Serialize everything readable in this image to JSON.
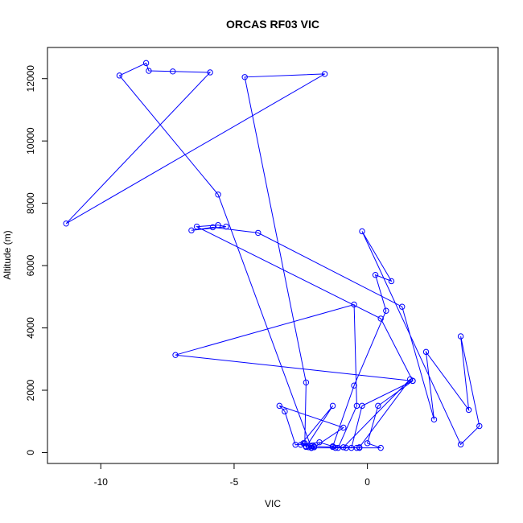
{
  "chart_data": {
    "type": "line",
    "title": "ORCAS RF03 VIC",
    "xlabel": "VIC",
    "ylabel": "Altitude (m)",
    "xlim": [
      -12,
      4.9
    ],
    "ylim": [
      -350,
      13000
    ],
    "x_ticks": [
      -10,
      -5,
      0
    ],
    "y_ticks": [
      0,
      2000,
      4000,
      6000,
      8000,
      10000,
      12000
    ],
    "line_color": "#0000ff",
    "marker": "open-circle",
    "series": [
      {
        "x": [
          -2.3,
          -2.4,
          -2.5,
          -1.3,
          -2.3,
          -2.0,
          -0.3,
          0.5,
          0.0,
          0.4,
          1.7,
          -0.2,
          -0.6,
          -1.3,
          -1.1,
          -0.4,
          -0.5,
          -7.2,
          1.7,
          0.5,
          -6.4,
          -5.6,
          -5.3,
          -6.6,
          -5.8,
          -4.1,
          1.3,
          2.5,
          2.2,
          3.8,
          3.5,
          4.2,
          3.5,
          -0.2,
          0.9,
          0.3,
          0.7,
          -0.5,
          -1.3,
          -1.8,
          -2.7,
          -3.1,
          -3.3,
          -0.9,
          -2.0,
          -2.1,
          -2.2,
          -2.1,
          -5.6,
          -9.3,
          -8.3,
          -8.2,
          -7.3,
          -5.9,
          -11.3,
          -1.6,
          -4.6,
          -2.3,
          -2.35,
          -2.1,
          -1.2,
          -0.8,
          -0.4,
          -0.9,
          1.6,
          -0.3
        ],
        "y": [
          200,
          300,
          250,
          1500,
          180,
          200,
          150,
          150,
          300,
          1500,
          2300,
          1500,
          150,
          180,
          150,
          1500,
          4750,
          3130,
          2300,
          4300,
          7250,
          7300,
          7250,
          7130,
          7230,
          7050,
          4680,
          1060,
          3230,
          1370,
          3730,
          850,
          260,
          7100,
          5500,
          5700,
          4550,
          2150,
          200,
          330,
          250,
          1320,
          1500,
          800,
          170,
          200,
          170,
          150,
          8280,
          12100,
          12500,
          12250,
          12230,
          12200,
          7350,
          12150,
          12050,
          2250,
          300,
          150,
          150,
          150,
          150,
          170,
          2350,
          170
        ]
      }
    ]
  }
}
